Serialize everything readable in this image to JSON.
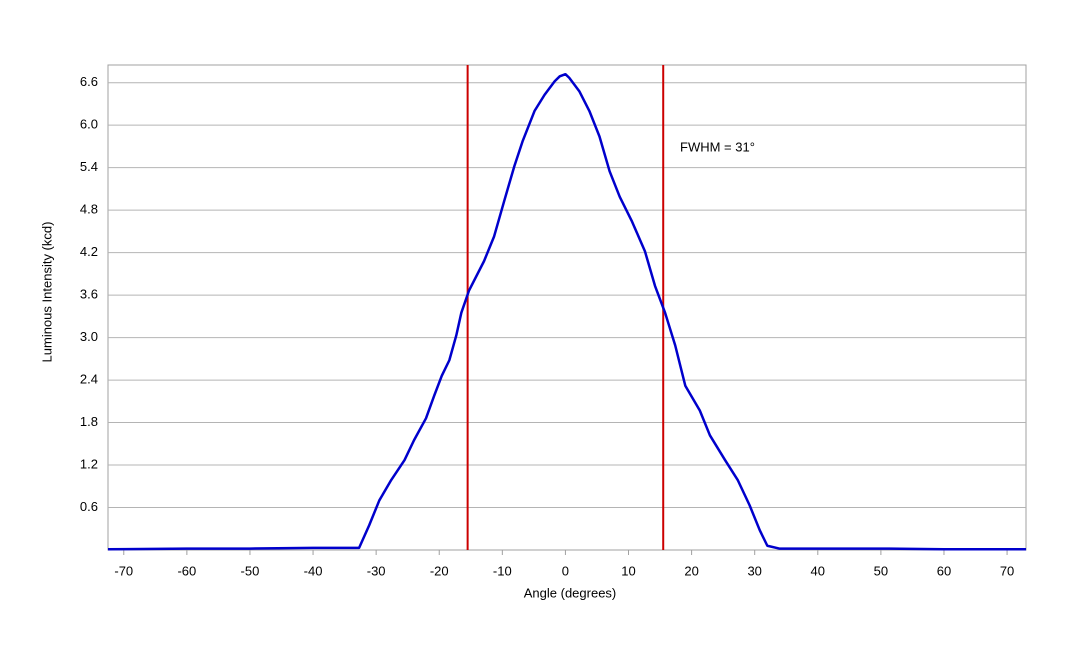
{
  "chart_data": {
    "type": "line",
    "x_label": "Angle (degrees)",
    "y_label": "Luminous Intensity (kcd)",
    "x": [
      -72.5,
      -60,
      -50,
      -40,
      -34,
      -32.7,
      -31.1,
      -29.5,
      -27.6,
      -25.5,
      -24.0,
      -22.1,
      -20.8,
      -19.6,
      -18.4,
      -17.3,
      -16.5,
      -15.3,
      -12.9,
      -11.3,
      -9.7,
      -8.1,
      -6.8,
      -4.9,
      -3.3,
      -1.7,
      -0.9,
      0,
      0.6,
      2.2,
      3.8,
      5.4,
      7.0,
      8.6,
      10.5,
      12.6,
      14.2,
      15.8,
      17.4,
      19.0,
      21.3,
      22.9,
      25.3,
      27.3,
      29.2,
      30.8,
      32.0,
      33.9,
      40,
      50,
      60,
      73
    ],
    "values": [
      0.01,
      0.02,
      0.02,
      0.03,
      0.03,
      0.03,
      0.35,
      0.7,
      0.99,
      1.27,
      1.55,
      1.86,
      2.18,
      2.46,
      2.68,
      3.03,
      3.35,
      3.66,
      4.08,
      4.43,
      4.93,
      5.42,
      5.77,
      6.2,
      6.43,
      6.62,
      6.69,
      6.72,
      6.67,
      6.48,
      6.2,
      5.84,
      5.35,
      4.99,
      4.65,
      4.22,
      3.73,
      3.35,
      2.89,
      2.32,
      1.97,
      1.62,
      1.27,
      0.99,
      0.63,
      0.28,
      0.06,
      0.02,
      0.02,
      0.02,
      0.01,
      0.01
    ],
    "color": "#0000cc",
    "vlines": [
      -15.5,
      15.5
    ],
    "vline_color": "#cc0000",
    "annotation": "FWHM = 31°",
    "xlim": [
      -72.5,
      73
    ],
    "xticks": [
      -70,
      -60,
      -50,
      -40,
      -30,
      -20,
      -10,
      0,
      10,
      20,
      30,
      40,
      50,
      60,
      70
    ],
    "ylim": [
      0,
      6.85
    ],
    "yticks": [
      0.6,
      1.2,
      1.8,
      2.4,
      {
        "value": 3,
        "label": "3.0"
      },
      3.6,
      4.2,
      4.8,
      5.4,
      {
        "value": 6,
        "label": "6.0"
      },
      6.6
    ],
    "grid": true
  }
}
